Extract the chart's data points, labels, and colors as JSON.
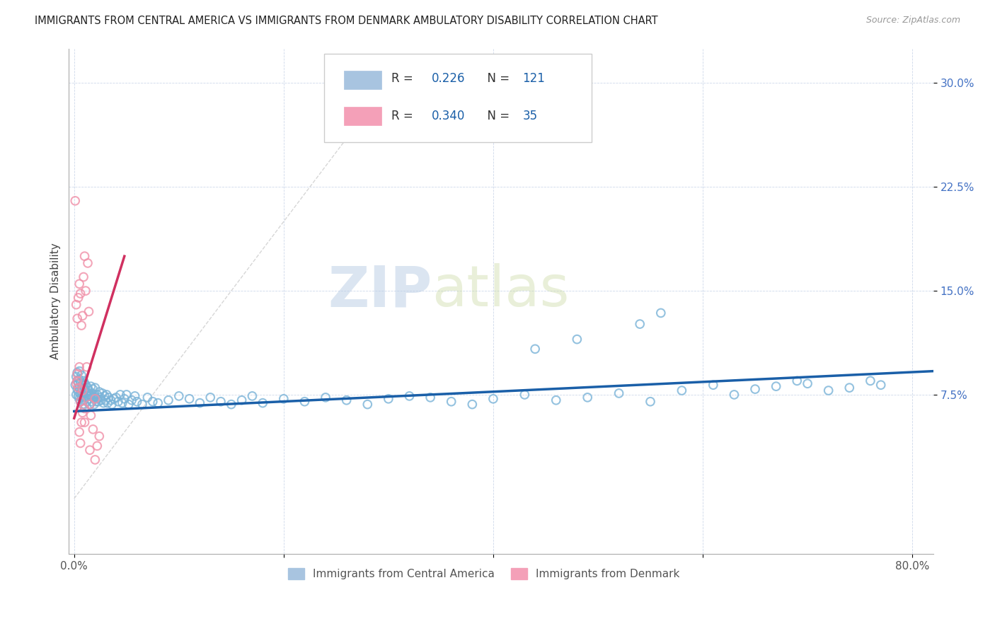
{
  "title": "IMMIGRANTS FROM CENTRAL AMERICA VS IMMIGRANTS FROM DENMARK AMBULATORY DISABILITY CORRELATION CHART",
  "source": "Source: ZipAtlas.com",
  "ylabel": "Ambulatory Disability",
  "xlabel_ticks": [
    "0.0%",
    "",
    "",
    "",
    "80.0%"
  ],
  "xlabel_vals": [
    0.0,
    0.2,
    0.4,
    0.6,
    0.8
  ],
  "ylabel_ticks": [
    "7.5%",
    "15.0%",
    "22.5%",
    "30.0%"
  ],
  "ylabel_vals": [
    0.075,
    0.15,
    0.225,
    0.3
  ],
  "xlim": [
    -0.005,
    0.82
  ],
  "ylim": [
    -0.04,
    0.325
  ],
  "watermark_zip": "ZIP",
  "watermark_atlas": "atlas",
  "blue_scatter_x": [
    0.001,
    0.002,
    0.002,
    0.003,
    0.003,
    0.003,
    0.004,
    0.004,
    0.004,
    0.005,
    0.005,
    0.005,
    0.005,
    0.006,
    0.006,
    0.006,
    0.007,
    0.007,
    0.007,
    0.007,
    0.008,
    0.008,
    0.008,
    0.009,
    0.009,
    0.009,
    0.01,
    0.01,
    0.01,
    0.011,
    0.011,
    0.012,
    0.012,
    0.013,
    0.013,
    0.014,
    0.014,
    0.015,
    0.015,
    0.016,
    0.016,
    0.017,
    0.017,
    0.018,
    0.018,
    0.019,
    0.019,
    0.02,
    0.02,
    0.021,
    0.022,
    0.022,
    0.023,
    0.024,
    0.025,
    0.026,
    0.027,
    0.028,
    0.029,
    0.03,
    0.031,
    0.032,
    0.033,
    0.035,
    0.036,
    0.038,
    0.04,
    0.042,
    0.044,
    0.046,
    0.048,
    0.05,
    0.052,
    0.055,
    0.058,
    0.06,
    0.065,
    0.07,
    0.075,
    0.08,
    0.09,
    0.1,
    0.11,
    0.12,
    0.13,
    0.14,
    0.15,
    0.16,
    0.17,
    0.18,
    0.2,
    0.22,
    0.24,
    0.26,
    0.28,
    0.3,
    0.32,
    0.34,
    0.36,
    0.38,
    0.4,
    0.43,
    0.46,
    0.49,
    0.52,
    0.55,
    0.58,
    0.61,
    0.63,
    0.65,
    0.67,
    0.69,
    0.7,
    0.72,
    0.74,
    0.76,
    0.77,
    0.54,
    0.56,
    0.44,
    0.48
  ],
  "blue_scatter_y": [
    0.082,
    0.088,
    0.075,
    0.091,
    0.079,
    0.085,
    0.074,
    0.083,
    0.077,
    0.092,
    0.08,
    0.072,
    0.086,
    0.076,
    0.084,
    0.07,
    0.08,
    0.073,
    0.089,
    0.075,
    0.082,
    0.068,
    0.078,
    0.074,
    0.085,
    0.071,
    0.079,
    0.083,
    0.068,
    0.076,
    0.082,
    0.07,
    0.077,
    0.074,
    0.08,
    0.072,
    0.078,
    0.075,
    0.068,
    0.074,
    0.081,
    0.07,
    0.076,
    0.073,
    0.079,
    0.068,
    0.075,
    0.073,
    0.08,
    0.07,
    0.075,
    0.072,
    0.07,
    0.077,
    0.073,
    0.071,
    0.076,
    0.069,
    0.074,
    0.071,
    0.075,
    0.069,
    0.073,
    0.071,
    0.068,
    0.072,
    0.073,
    0.07,
    0.075,
    0.069,
    0.072,
    0.075,
    0.068,
    0.071,
    0.074,
    0.07,
    0.068,
    0.073,
    0.07,
    0.069,
    0.071,
    0.074,
    0.072,
    0.069,
    0.073,
    0.07,
    0.068,
    0.071,
    0.074,
    0.069,
    0.072,
    0.07,
    0.073,
    0.071,
    0.068,
    0.072,
    0.074,
    0.073,
    0.07,
    0.068,
    0.072,
    0.075,
    0.071,
    0.073,
    0.076,
    0.07,
    0.078,
    0.082,
    0.075,
    0.079,
    0.081,
    0.085,
    0.083,
    0.078,
    0.08,
    0.085,
    0.082,
    0.126,
    0.134,
    0.108,
    0.115
  ],
  "pink_scatter_x": [
    0.001,
    0.002,
    0.002,
    0.003,
    0.003,
    0.004,
    0.004,
    0.005,
    0.005,
    0.006,
    0.006,
    0.007,
    0.007,
    0.008,
    0.008,
    0.009,
    0.01,
    0.01,
    0.011,
    0.012,
    0.013,
    0.014,
    0.015,
    0.016,
    0.018,
    0.02,
    0.022,
    0.024,
    0.003,
    0.005,
    0.006,
    0.008,
    0.01,
    0.015,
    0.02
  ],
  "pink_scatter_y": [
    0.215,
    0.083,
    0.14,
    0.09,
    0.13,
    0.145,
    0.08,
    0.155,
    0.095,
    0.148,
    0.07,
    0.125,
    0.055,
    0.132,
    0.078,
    0.16,
    0.175,
    0.065,
    0.15,
    0.095,
    0.17,
    0.135,
    0.068,
    0.06,
    0.05,
    0.072,
    0.038,
    0.045,
    0.085,
    0.048,
    0.04,
    0.062,
    0.055,
    0.035,
    0.028
  ],
  "blue_line_x": [
    0.0,
    0.82
  ],
  "blue_line_y": [
    0.063,
    0.092
  ],
  "pink_line_x": [
    0.0,
    0.048
  ],
  "pink_line_y": [
    0.058,
    0.175
  ],
  "diag_line_x": [
    0.0,
    0.315
  ],
  "diag_line_y": [
    0.0,
    0.315
  ],
  "scatter_size": 70,
  "scatter_alpha": 0.5,
  "blue_color": "#7ab3d8",
  "pink_color": "#f090a8",
  "blue_line_color": "#1a5fa8",
  "pink_line_color": "#d03060",
  "diag_line_color": "#cccccc",
  "legend_blue_label_r": "R = ",
  "legend_blue_r_val": "0.226",
  "legend_blue_n": "   N = ",
  "legend_blue_n_val": "121",
  "legend_pink_label_r": "R = ",
  "legend_pink_r_val": "0.340",
  "legend_pink_n": "   N = ",
  "legend_pink_n_val": "35",
  "bottom_legend_blue": "Immigrants from Central America",
  "bottom_legend_pink": "Immigrants from Denmark"
}
